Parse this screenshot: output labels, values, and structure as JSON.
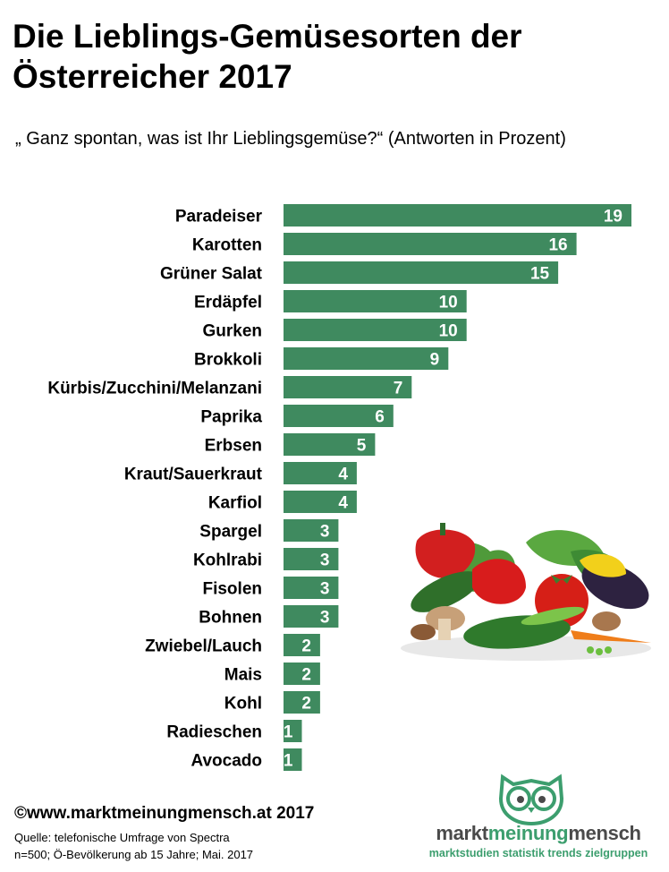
{
  "title": "Die Lieblings-Gemüsesorten der Österreicher 2017",
  "subtitle": "„ Ganz spontan, was ist Ihr Lieblingsgemüse?“ (Antworten in Prozent)",
  "chart_data": {
    "type": "bar",
    "orientation": "horizontal",
    "categories": [
      "Paradeiser",
      "Karotten",
      "Grüner Salat",
      "Erdäpfel",
      "Gurken",
      "Brokkoli",
      "Kürbis/Zucchini/Melanzani",
      "Paprika",
      "Erbsen",
      "Kraut/Sauerkraut",
      "Karfiol",
      "Spargel",
      "Kohlrabi",
      "Fisolen",
      "Bohnen",
      "Zwiebel/Lauch",
      "Mais",
      "Kohl",
      "Radieschen",
      "Avocado"
    ],
    "values": [
      19,
      16,
      15,
      10,
      10,
      9,
      7,
      6,
      5,
      4,
      4,
      3,
      3,
      3,
      3,
      2,
      2,
      2,
      1,
      1
    ],
    "bar_color": "#3f8a5f",
    "data_labels": true,
    "grid": false,
    "legend": "none"
  },
  "footer": {
    "copyright": "©www.marktmeinungmensch.at 2017",
    "source_line1": "Quelle: telefonische Umfrage von Spectra",
    "source_line2": "n=500; Ö-Bevölkerung ab 15 Jahre; Mai. 2017"
  },
  "logo": {
    "brand_part1": "markt",
    "brand_part2": "meinung",
    "brand_part3": "mensch",
    "tagline": "marktstudien statistik trends zielgruppen",
    "accent_color": "#3c9e6e"
  }
}
